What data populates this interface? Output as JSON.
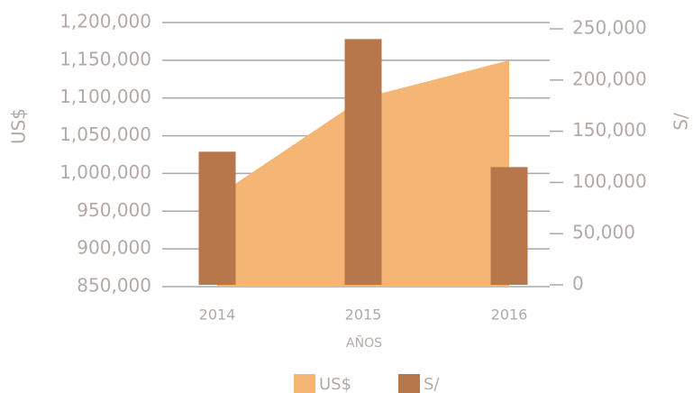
{
  "chart_data": {
    "type": "bar-area",
    "categories": [
      "2014",
      "2015",
      "2016"
    ],
    "x_label": "AÑOS",
    "y_label": "US$",
    "y2_label": "S/",
    "series": [
      {
        "name": "US$",
        "color": "#f5b574",
        "type": "area",
        "axis": "y",
        "values": [
          970000,
          1100000,
          1150000
        ]
      },
      {
        "name": "S/",
        "color": "#b8774a",
        "type": "bar",
        "axis": "y2",
        "values": [
          130000,
          240000,
          115000
        ]
      }
    ],
    "ylim": [
      850000,
      1200000
    ],
    "yticks": [
      {
        "value": 850000,
        "label": "850,000"
      },
      {
        "value": 900000,
        "label": "900,000"
      },
      {
        "value": 950000,
        "label": "950,000"
      },
      {
        "value": 1000000,
        "label": "1,000,000"
      },
      {
        "value": 1050000,
        "label": "1,050,000"
      },
      {
        "value": 1100000,
        "label": "1,100,000"
      },
      {
        "value": 1150000,
        "label": "1,150,000"
      },
      {
        "value": 1200000,
        "label": "1,200,000"
      }
    ],
    "y2lim": [
      0,
      250000
    ],
    "y2ticks": [
      0,
      {
        "value": 50000,
        "label": "50,000"
      },
      {
        "value": 100000,
        "label": "100,000"
      },
      {
        "value": 150000,
        "label": "150,000"
      },
      {
        "value": 200000,
        "label": "200,000"
      },
      {
        "value": 250000,
        "label": "250,000"
      }
    ],
    "grid": true,
    "legend": "bottom"
  }
}
